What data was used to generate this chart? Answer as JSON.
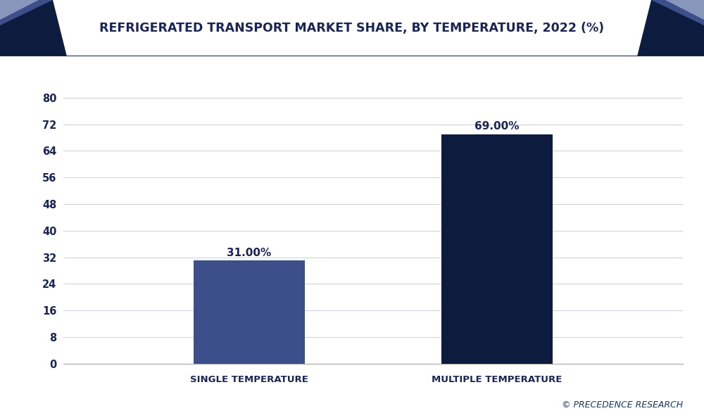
{
  "title": "REFRIGERATED TRANSPORT MARKET SHARE, BY TEMPERATURE, 2022 (%)",
  "categories": [
    "SINGLE TEMPERATURE",
    "MULTIPLE TEMPERATURE"
  ],
  "values": [
    31.0,
    69.0
  ],
  "bar_colors": [
    "#3d4f8a",
    "#0d1b3e"
  ],
  "value_labels": [
    "31.00%",
    "69.00%"
  ],
  "yticks": [
    0,
    8,
    16,
    24,
    32,
    40,
    48,
    56,
    64,
    72,
    80
  ],
  "ylim": [
    0,
    88
  ],
  "background_color": "#ffffff",
  "plot_area_color": "#ffffff",
  "title_color": "#1a2555",
  "tick_label_color": "#1a2555",
  "grid_color": "#d0d5dd",
  "watermark": "© PRECEDENCE RESEARCH",
  "watermark_color": "#1a3a5c",
  "title_fontsize": 12.5,
  "bar_label_fontsize": 11,
  "tick_fontsize": 10.5,
  "xtick_fontsize": 9.5,
  "watermark_fontsize": 9,
  "bar_width": 0.18,
  "chevron_dark": "#0d1b3e",
  "chevron_mid": "#3d4f8a",
  "chevron_light": "#8896bb",
  "header_border_color": "#1a2555",
  "x_positions": [
    0.3,
    0.7
  ]
}
